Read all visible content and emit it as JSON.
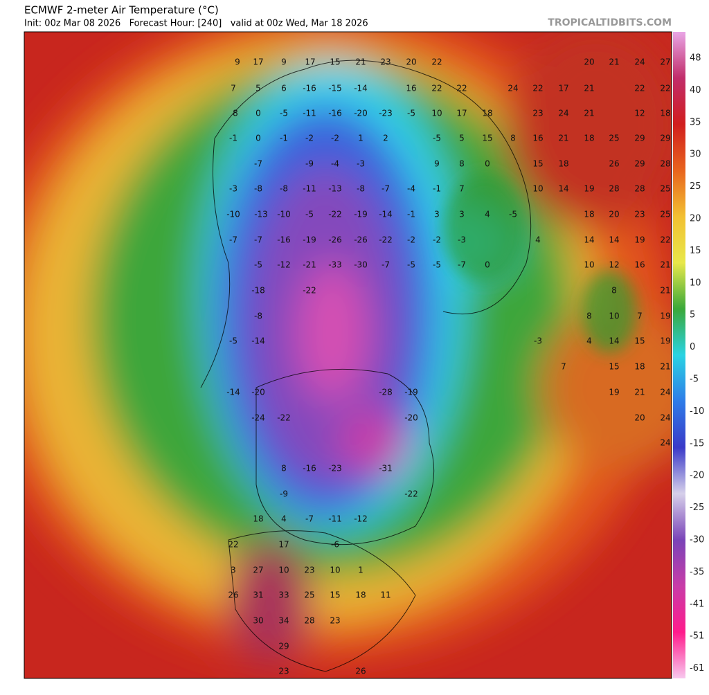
{
  "header": {
    "title": "ECMWF 2-meter Air Temperature (°C)",
    "subtitle": "Init: 00z Mar 08 2026   Forecast Hour: [240]   valid at 00z Wed, Mar 18 2026",
    "site": "TROPICALTIDBITS.COM"
  },
  "colorbar": {
    "ticks": [
      48,
      40,
      35,
      30,
      25,
      20,
      15,
      10,
      5,
      0,
      -5,
      -10,
      -15,
      -20,
      -25,
      -30,
      -35,
      -41,
      -51,
      -61
    ],
    "colors": [
      "#e9a6e6",
      "#c12d6a",
      "#d11e1e",
      "#e8641e",
      "#f2c032",
      "#e8e84a",
      "#3aa83a",
      "#2ad3e3",
      "#2e7ce8",
      "#3a3ac8",
      "#d6d0ea",
      "#7a44b8",
      "#c83ca8",
      "#ff1c8c",
      "#f8c8ee"
    ]
  },
  "map": {
    "labels": [
      9,
      17,
      9,
      17,
      15,
      21,
      23,
      20,
      22,
      20,
      21,
      24,
      27,
      7,
      5,
      6,
      -16,
      -15,
      -14,
      16,
      22,
      22,
      24,
      22,
      17,
      21,
      22,
      22,
      8,
      0,
      -5,
      -11,
      -16,
      -20,
      -23,
      -5,
      10,
      17,
      18,
      23,
      24,
      21,
      12,
      18,
      -1,
      0,
      -1,
      -2,
      -2,
      1,
      2,
      -5,
      5,
      15,
      8,
      16,
      21,
      18,
      25,
      29,
      29,
      -7,
      -9,
      -4,
      -3,
      9,
      8,
      0,
      15,
      18,
      26,
      29,
      28,
      -3,
      -8,
      -8,
      -11,
      -13,
      -8,
      -7,
      -4,
      -1,
      7,
      10,
      14,
      19,
      28,
      28,
      25,
      -10,
      -13,
      -10,
      -5,
      -22,
      -19,
      -14,
      -1,
      3,
      3,
      4,
      -5,
      18,
      20,
      23,
      25,
      -7,
      -7,
      -16,
      -19,
      -26,
      -26,
      -22,
      -2,
      -2,
      -3,
      4,
      14,
      14,
      19,
      22,
      -5,
      -12,
      -21,
      -33,
      -30,
      -7,
      -5,
      -5,
      -7,
      0,
      10,
      12,
      16,
      21,
      -18,
      -22,
      8,
      21,
      -8,
      8,
      10,
      7,
      19,
      -5,
      -14,
      -3,
      4,
      14,
      15,
      19,
      7,
      15,
      18,
      21,
      -14,
      -20,
      -28,
      -19,
      19,
      21,
      24,
      -24,
      -22,
      -20,
      20,
      24,
      24,
      8,
      -16,
      -23,
      -31,
      -9,
      -22,
      18,
      4,
      -7,
      -11,
      -12,
      22,
      17,
      -6,
      3,
      27,
      10,
      23,
      10,
      1,
      26,
      31,
      33,
      25,
      15,
      18,
      11,
      30,
      34,
      28,
      23,
      29,
      23,
      26
    ]
  }
}
